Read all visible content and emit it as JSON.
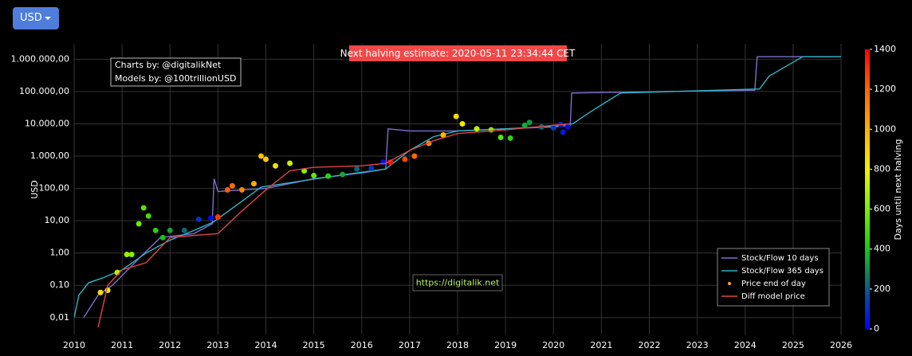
{
  "button": {
    "label": "USD"
  },
  "chart_data": {
    "type": "line",
    "y_label": "USD",
    "annotations": {
      "halving": "Next halving estimate: 2020-05-11 23:34:44 CET",
      "charts_by": "Charts by: @digitalikNet",
      "models_by": "Models by: @100trillionUSD",
      "url": "https://digitalik.net"
    },
    "log_y": true,
    "grid": true,
    "legend": "bottom right",
    "xlim": [
      2010,
      2026
    ],
    "xticks": [
      2010,
      2011,
      2012,
      2013,
      2014,
      2015,
      2016,
      2017,
      2018,
      2019,
      2020,
      2021,
      2022,
      2023,
      2024,
      2025,
      2026
    ],
    "ylim": [
      0.003,
      3000000
    ],
    "yticks": [
      {
        "value": 0.01,
        "label": "0,01"
      },
      {
        "value": 0.1,
        "label": "0,10"
      },
      {
        "value": 1,
        "label": "1,00"
      },
      {
        "value": 10,
        "label": "10,00"
      },
      {
        "value": 100,
        "label": "100,00"
      },
      {
        "value": 1000,
        "label": "1.000,00"
      },
      {
        "value": 10000,
        "label": "10.000,00"
      },
      {
        "value": 100000,
        "label": "100.000,00"
      },
      {
        "value": 1000000,
        "label": "1.000.000,00"
      }
    ],
    "colorbar": {
      "label": "Days until next halving",
      "lim": [
        0,
        1400
      ],
      "ticks": [
        0,
        200,
        400,
        600,
        800,
        1000,
        1200,
        1400
      ],
      "colorscale": [
        [
          0,
          "#0000ff"
        ],
        [
          200,
          "#0a5a8c"
        ],
        [
          400,
          "#14c814"
        ],
        [
          600,
          "#78f000"
        ],
        [
          800,
          "#f0f000"
        ],
        [
          1000,
          "#ffb000"
        ],
        [
          1200,
          "#ff6400"
        ],
        [
          1400,
          "#ff0000"
        ]
      ]
    },
    "series": [
      {
        "name": "Stock/Flow 10 days",
        "color": "#7b6fd0",
        "x": [
          2010.2,
          2010.5,
          2010.8,
          2011.0,
          2011.4,
          2011.8,
          2012.5,
          2012.88,
          2012.92,
          2013.0,
          2013.5,
          2014.0,
          2015.0,
          2016.0,
          2016.5,
          2016.55,
          2017.0,
          2018.0,
          2019.0,
          2020.0,
          2020.35,
          2020.38,
          2024.2,
          2024.25,
          2026.0
        ],
        "values": [
          0.01,
          0.05,
          0.1,
          0.2,
          0.8,
          3,
          4,
          8,
          200,
          80,
          90,
          100,
          200,
          300,
          400,
          7000,
          6000,
          6000,
          7000,
          8000,
          9000,
          90000,
          110000,
          1200000,
          1200000
        ]
      },
      {
        "name": "Stock/Flow 365 days",
        "color": "#2fb5c5",
        "x": [
          2010.0,
          2010.1,
          2010.3,
          2010.6,
          2011.0,
          2011.5,
          2012.0,
          2012.5,
          2012.9,
          2013.5,
          2013.9,
          2014.5,
          2015.5,
          2016.5,
          2017.0,
          2017.5,
          2018.0,
          2019.0,
          2020.0,
          2020.4,
          2020.8,
          2021.4,
          2024.3,
          2024.5,
          2025.2,
          2026.0
        ],
        "values": [
          0.01,
          0.05,
          0.12,
          0.17,
          0.3,
          1,
          2.5,
          5,
          9,
          40,
          110,
          150,
          250,
          400,
          1500,
          4000,
          6000,
          7000,
          8500,
          10000,
          25000,
          90000,
          120000,
          300000,
          1200000,
          1200000
        ]
      },
      {
        "name": "Price end of day",
        "color": "#f5a623",
        "type": "scatter",
        "x": [
          2010.55,
          2010.7,
          2010.9,
          2011.1,
          2011.2,
          2011.35,
          2011.45,
          2011.55,
          2011.7,
          2011.85,
          2012.0,
          2012.3,
          2012.6,
          2012.85,
          2013.0,
          2013.2,
          2013.3,
          2013.5,
          2013.75,
          2013.9,
          2014.0,
          2014.2,
          2014.5,
          2014.8,
          2015.0,
          2015.3,
          2015.6,
          2015.9,
          2016.2,
          2016.45,
          2016.6,
          2016.9,
          2017.1,
          2017.4,
          2017.7,
          2017.97,
          2018.1,
          2018.4,
          2018.7,
          2018.9,
          2019.1,
          2019.4,
          2019.5,
          2019.75,
          2020.0,
          2020.15,
          2020.2,
          2020.3
        ],
        "values": [
          0.06,
          0.07,
          0.25,
          0.9,
          0.9,
          8,
          25,
          14,
          5,
          3,
          5,
          5,
          11,
          12,
          13,
          90,
          120,
          90,
          140,
          1000,
          800,
          500,
          600,
          350,
          250,
          240,
          270,
          400,
          420,
          650,
          650,
          800,
          1000,
          2500,
          4500,
          17000,
          10000,
          7000,
          6500,
          3800,
          3600,
          9000,
          11000,
          8000,
          7500,
          9500,
          5500,
          8000
        ],
        "days": [
          861,
          807,
          734,
          661,
          624,
          569,
          533,
          496,
          442,
          387,
          332,
          223,
          113,
          22,
          1285,
          1212,
          1176,
          1103,
          1011,
          956,
          920,
          847,
          737,
          628,
          555,
          445,
          336,
          226,
          117,
          26,
          1372,
          1263,
          1190,
          1081,
          971,
          873,
          825,
          716,
          606,
          533,
          460,
          350,
          314,
          223,
          131,
          77,
          58,
          22
        ]
      },
      {
        "name": "Diff model price",
        "color": "#e04545",
        "x": [
          2010.5,
          2010.7,
          2011.0,
          2011.5,
          2012.0,
          2012.5,
          2013.0,
          2013.5,
          2014.0,
          2014.5,
          2015.0,
          2016.0,
          2016.5,
          2017.0,
          2017.5,
          2018.0,
          2019.0,
          2020.0,
          2020.35
        ],
        "values": [
          0.005,
          0.1,
          0.3,
          0.5,
          3,
          3.5,
          4,
          20,
          90,
          350,
          450,
          500,
          600,
          1500,
          3000,
          5000,
          6500,
          9000,
          10000
        ]
      }
    ]
  }
}
